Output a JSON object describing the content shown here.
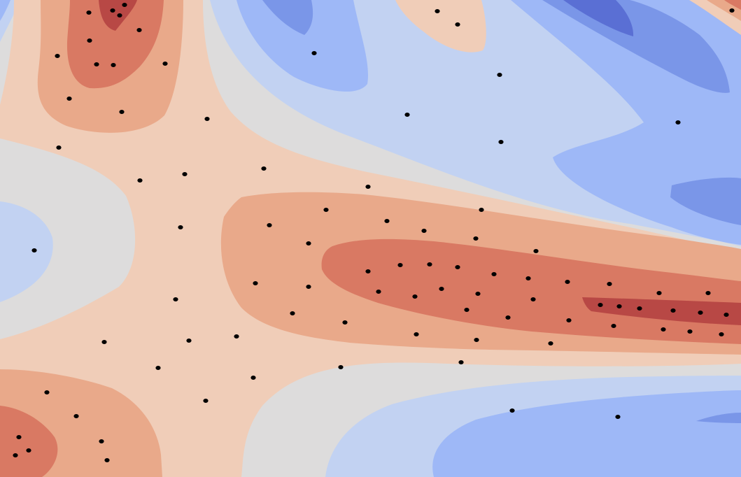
{
  "chart_data": {
    "type": "heatmap",
    "subtype": "filled-contour",
    "colormap": "coolwarm",
    "title": "",
    "xlabel": "",
    "ylabel": "",
    "axes_visible": false,
    "colorbar": false,
    "grid": false,
    "levels": [
      {
        "id": "l0",
        "color": "#dddcdc"
      },
      {
        "id": "lb1",
        "color": "#c2d2f2"
      },
      {
        "id": "lb2",
        "color": "#9eb8f7"
      },
      {
        "id": "lb3",
        "color": "#7a96e8"
      },
      {
        "id": "lb4",
        "color": "#5a6fd4"
      },
      {
        "id": "lr1",
        "color": "#f0cdb8"
      },
      {
        "id": "lr2",
        "color": "#e9a98a"
      },
      {
        "id": "lr3",
        "color": "#d97963"
      },
      {
        "id": "lr4",
        "color": "#b84845"
      }
    ],
    "scatter": {
      "marker": "circle",
      "color": "#000000",
      "points": [
        [
          127,
          18
        ],
        [
          161,
          15
        ],
        [
          171,
          22
        ],
        [
          178,
          7
        ],
        [
          199,
          43
        ],
        [
          128,
          58
        ],
        [
          82,
          80
        ],
        [
          138,
          92
        ],
        [
          162,
          93
        ],
        [
          236,
          91
        ],
        [
          99,
          141
        ],
        [
          174,
          160
        ],
        [
          296,
          170
        ],
        [
          84,
          211
        ],
        [
          200,
          258
        ],
        [
          264,
          249
        ],
        [
          377,
          241
        ],
        [
          526,
          267
        ],
        [
          258,
          325
        ],
        [
          385,
          322
        ],
        [
          466,
          300
        ],
        [
          553,
          316
        ],
        [
          606,
          330
        ],
        [
          688,
          300
        ],
        [
          680,
          341
        ],
        [
          441,
          348
        ],
        [
          766,
          359
        ],
        [
          49,
          358
        ],
        [
          365,
          405
        ],
        [
          441,
          410
        ],
        [
          526,
          388
        ],
        [
          572,
          379
        ],
        [
          614,
          378
        ],
        [
          654,
          382
        ],
        [
          706,
          392
        ],
        [
          755,
          398
        ],
        [
          811,
          403
        ],
        [
          871,
          406
        ],
        [
          942,
          419
        ],
        [
          1012,
          419
        ],
        [
          541,
          417
        ],
        [
          593,
          424
        ],
        [
          631,
          413
        ],
        [
          683,
          420
        ],
        [
          762,
          428
        ],
        [
          858,
          436
        ],
        [
          885,
          438
        ],
        [
          914,
          441
        ],
        [
          962,
          444
        ],
        [
          1001,
          447
        ],
        [
          1038,
          450
        ],
        [
          418,
          448
        ],
        [
          493,
          461
        ],
        [
          667,
          443
        ],
        [
          726,
          454
        ],
        [
          813,
          458
        ],
        [
          877,
          466
        ],
        [
          948,
          471
        ],
        [
          986,
          474
        ],
        [
          1031,
          478
        ],
        [
          251,
          428
        ],
        [
          338,
          481
        ],
        [
          270,
          487
        ],
        [
          149,
          489
        ],
        [
          226,
          526
        ],
        [
          362,
          540
        ],
        [
          487,
          525
        ],
        [
          595,
          478
        ],
        [
          681,
          486
        ],
        [
          787,
          491
        ],
        [
          659,
          518
        ],
        [
          294,
          573
        ],
        [
          67,
          561
        ],
        [
          109,
          595
        ],
        [
          27,
          625
        ],
        [
          41,
          644
        ],
        [
          145,
          631
        ],
        [
          153,
          658
        ],
        [
          22,
          651
        ],
        [
          732,
          587
        ],
        [
          883,
          596
        ],
        [
          969,
          175
        ],
        [
          716,
          203
        ],
        [
          582,
          164
        ],
        [
          714,
          107
        ],
        [
          449,
          76
        ],
        [
          654,
          35
        ],
        [
          625,
          16
        ],
        [
          1046,
          15
        ]
      ]
    }
  }
}
